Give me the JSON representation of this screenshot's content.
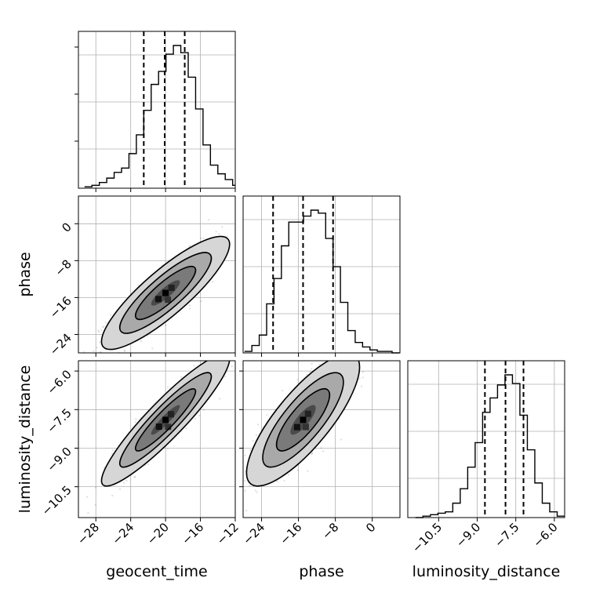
{
  "chart_data": {
    "type": "corner",
    "parameters": [
      "geocent_time",
      "phase",
      "luminosity_distance"
    ],
    "quantiles": {
      "geocent_time": [
        -22.5,
        -20.1,
        -17.8
      ],
      "phase": [
        -21.5,
        -15.0,
        -8.5
      ],
      "luminosity_distance": [
        -8.7,
        -7.9,
        -7.2
      ]
    },
    "ranges": {
      "geocent_time": [
        -30.0,
        -12.0
      ],
      "phase": [
        -28.0,
        6.0
      ],
      "luminosity_distance": [
        -11.7,
        -5.6
      ]
    },
    "ticks": {
      "geocent_time": [
        "-28",
        "-24",
        "-20",
        "-16",
        "-12"
      ],
      "phase": [
        "-24",
        "-16",
        "-8",
        "0"
      ],
      "luminosity_distance": [
        "-10.5",
        "-9.0",
        "-7.5",
        "-6.0"
      ]
    },
    "histograms": {
      "geocent_time": {
        "edges_start": -29.3,
        "bin_width": 0.85,
        "counts": [
          0.01,
          0.02,
          0.04,
          0.07,
          0.11,
          0.14,
          0.24,
          0.37,
          0.54,
          0.72,
          0.81,
          0.93,
          0.99,
          0.94,
          0.77,
          0.55,
          0.3,
          0.16,
          0.1,
          0.06,
          0.02,
          0.01,
          0.01
        ]
      },
      "phase": {
        "edges_start": -27.7,
        "bin_width": 1.6,
        "counts": [
          0.01,
          0.05,
          0.12,
          0.33,
          0.5,
          0.72,
          0.88,
          0.88,
          0.92,
          0.96,
          0.94,
          0.77,
          0.58,
          0.34,
          0.15,
          0.07,
          0.04,
          0.02,
          0.01,
          0.01,
          0.0
        ]
      },
      "luminosity_distance": {
        "edges_start": -11.4,
        "bin_width": 0.29,
        "counts": [
          0.0,
          0.01,
          0.02,
          0.03,
          0.04,
          0.1,
          0.2,
          0.35,
          0.52,
          0.73,
          0.83,
          0.92,
          0.99,
          0.93,
          0.71,
          0.47,
          0.24,
          0.1,
          0.04,
          0.01,
          0.0
        ]
      }
    },
    "pairs": [
      {
        "x": "geocent_time",
        "y": "phase",
        "mean": [
          -20.0,
          -15.0
        ],
        "std": [
          3.0,
          5.0
        ],
        "rho": 0.86
      },
      {
        "x": "geocent_time",
        "y": "luminosity_distance",
        "mean": [
          -20.0,
          -7.9
        ],
        "std": [
          3.0,
          1.05
        ],
        "rho": 0.92
      },
      {
        "x": "phase",
        "y": "luminosity_distance",
        "mean": [
          -15.0,
          -7.9
        ],
        "std": [
          5.0,
          1.05
        ],
        "rho": 0.8
      }
    ],
    "grid": true
  }
}
